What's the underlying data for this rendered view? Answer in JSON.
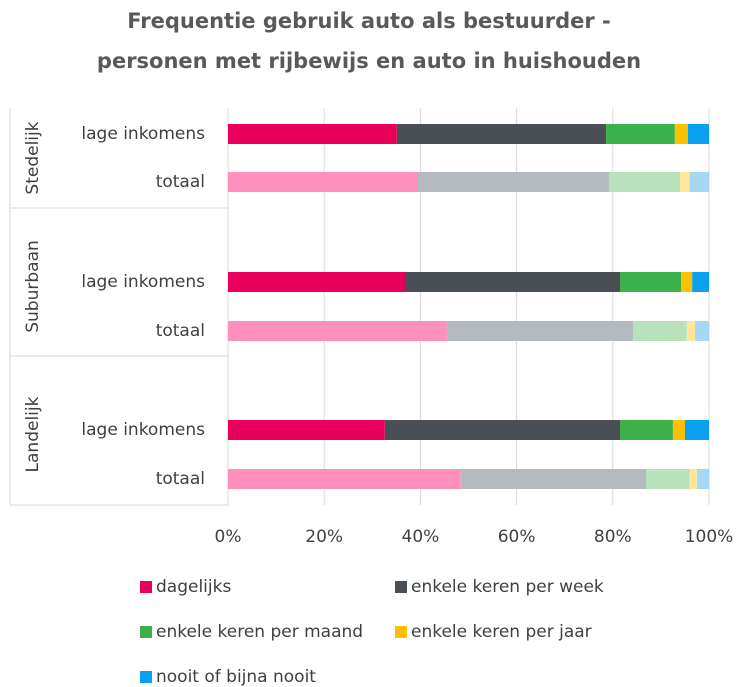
{
  "chart_data": {
    "type": "stacked_barh",
    "title": [
      "Frequentie gebruik auto als bestuurder -",
      "personen met rijbewijs en auto in huishouden"
    ],
    "categories": [
      "lage inkomens",
      "totaal",
      "lage inkomens",
      "totaal",
      "lage inkomens",
      "totaal"
    ],
    "category_groups": [
      "Stedelijk",
      "Stedelijk",
      "Suburbaan",
      "Suburbaan",
      "Landelijk",
      "Landelijk"
    ],
    "series": [
      {
        "name": "dagelijks",
        "color": "#e8005a",
        "colors": [
          "#e8005a",
          "#ff8fbd",
          "#e8005a",
          "#ff8fbd",
          "#e8005a",
          "#ff8fbd"
        ],
        "values": [
          35.1,
          39.5,
          36.8,
          45.5,
          32.6,
          48.4
        ]
      },
      {
        "name": "enkele keren per week",
        "color": "#4a4f55",
        "colors": [
          "#4a4f55",
          "#b5bac0",
          "#4a4f55",
          "#b5bac0",
          "#4a4f55",
          "#b5bac0"
        ],
        "values": [
          43.5,
          39.7,
          44.7,
          38.7,
          48.9,
          38.5
        ]
      },
      {
        "name": "enkele keren per maand",
        "color": "#3cb14a",
        "colors": [
          "#3cb14a",
          "#b9e2bc",
          "#3cb14a",
          "#b9e2bc",
          "#3cb14a",
          "#b9e2bc"
        ],
        "values": [
          14.3,
          14.8,
          12.7,
          11.2,
          11.0,
          9.1
        ]
      },
      {
        "name": "enkele keren per jaar",
        "color": "#ffc000",
        "colors": [
          "#ffc000",
          "#ffe699",
          "#ffc000",
          "#ffe699",
          "#ffc000",
          "#ffe699"
        ],
        "values": [
          2.7,
          2.0,
          2.3,
          1.7,
          2.5,
          1.5
        ]
      },
      {
        "name": "nooit of bijna nooit",
        "color": "#0aa0f0",
        "colors": [
          "#0aa0f0",
          "#a6d8f5",
          "#0aa0f0",
          "#a6d8f5",
          "#0aa0f0",
          "#a6d8f5"
        ],
        "values": [
          4.4,
          4.0,
          3.5,
          2.9,
          5.0,
          2.5
        ]
      }
    ],
    "xlim": [
      0,
      100
    ],
    "xticks": [
      {
        "value": 0,
        "label": "0%"
      },
      {
        "value": 20,
        "label": "20%"
      },
      {
        "value": 40,
        "label": "40%"
      },
      {
        "value": 60,
        "label": "60%"
      },
      {
        "value": 80,
        "label": "80%"
      },
      {
        "value": 100,
        "label": "100%"
      }
    ],
    "grid": true
  }
}
